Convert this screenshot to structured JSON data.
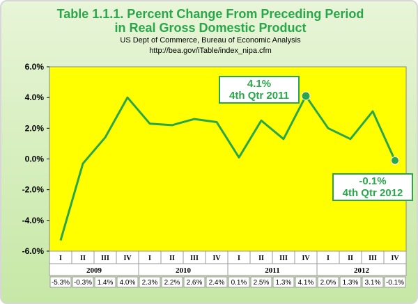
{
  "chart_data": {
    "type": "line",
    "title_line1": "Table 1.1.1. Percent Change From Preceding Period",
    "title_line2": "in Real Gross Domestic Product",
    "source_line1": "US Dept of Commerce, Bureau of Economic Analysis",
    "source_line2": "http://bea.gov/iTable/index_nipa.cfm",
    "ylim": [
      -6,
      6
    ],
    "y_ticks": [
      "6.0%",
      "4.0%",
      "2.0%",
      "0.0%",
      "-2.0%",
      "-4.0%",
      "-6.0%"
    ],
    "y_tick_values": [
      6,
      4,
      2,
      0,
      -2,
      -4,
      -6
    ],
    "quarters": [
      "I",
      "II",
      "III",
      "IV",
      "I",
      "II",
      "III",
      "IV",
      "I",
      "II",
      "III",
      "IV",
      "I",
      "II",
      "III",
      "IV"
    ],
    "years": [
      "2009",
      "2010",
      "2011",
      "2012"
    ],
    "values": [
      -5.3,
      -0.3,
      1.4,
      4.0,
      2.3,
      2.2,
      2.6,
      2.4,
      0.1,
      2.5,
      1.3,
      4.1,
      2.0,
      1.3,
      3.1,
      -0.1
    ],
    "data_labels": [
      "-5.3%",
      "-0.3%",
      "1.4%",
      "4.0%",
      "2.3%",
      "2.2%",
      "2.6%",
      "2.4%",
      "0.1%",
      "2.5%",
      "1.3%",
      "4.1%",
      "2.0%",
      "1.3%",
      "3.1%",
      "-0.1%"
    ],
    "highlight_indices": [
      11,
      15
    ],
    "annotations": [
      {
        "line1": "4.1%",
        "line2": "4th Qtr 2011"
      },
      {
        "line1": "-0.1%",
        "line2": "4th Qtr 2012"
      }
    ],
    "grid": false,
    "colors": {
      "line": "#2aa64a",
      "plot_bg": "#ffff00",
      "title": "#2aa64a"
    }
  }
}
